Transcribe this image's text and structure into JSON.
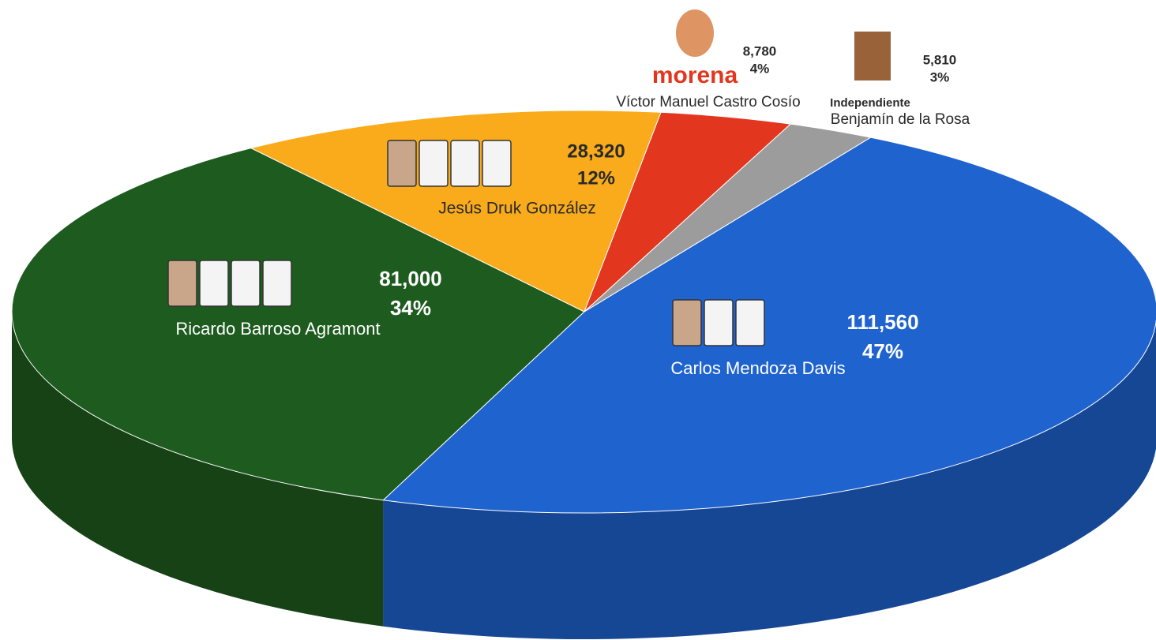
{
  "chart_data": {
    "type": "pie3d",
    "categories": [
      "Carlos Mendoza Davis",
      "Ricardo Barroso Agramont",
      "Jesús Druk González",
      "Víctor Manuel Castro Cosío",
      "Benjamín de la Rosa"
    ],
    "values": [
      111560,
      81000,
      28320,
      8780,
      5810
    ],
    "value_labels": [
      "111,560",
      "81,000",
      "28,320",
      "8,780",
      "5,810"
    ],
    "percent_labels": [
      "47%",
      "34%",
      "12%",
      "4%",
      "3%"
    ],
    "party_labels": [
      null,
      null,
      null,
      "morena",
      "Independiente"
    ],
    "colors": [
      "#1f63cf",
      "#1e5b1f",
      "#f9ab1c",
      "#e2361f",
      "#9c9c9c"
    ]
  }
}
